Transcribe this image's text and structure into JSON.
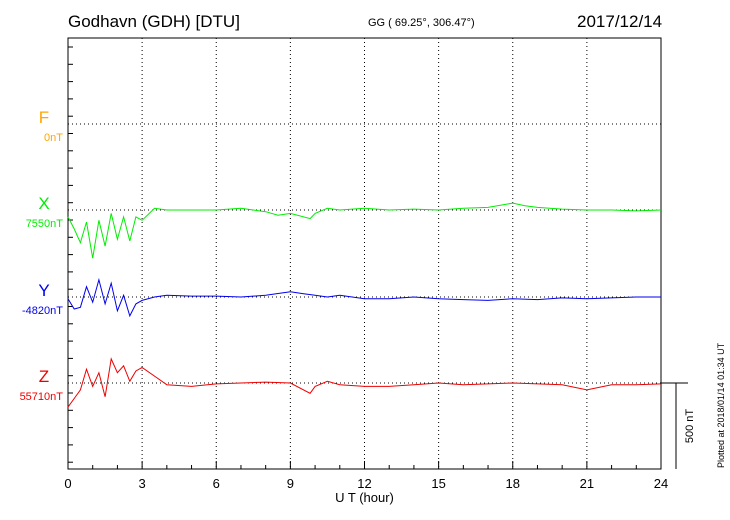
{
  "header": {
    "station": "Godhavn (GDH)  [DTU]",
    "coords": "GG ( 69.25°, 306.47°)",
    "date": "2017/12/14"
  },
  "footer": {
    "plotted": "Plotted at 2018/01/14 01:34 UT"
  },
  "chart_data": {
    "type": "line",
    "title": "",
    "xlabel": "U T (hour)",
    "xlim": [
      0,
      24
    ],
    "xticks": [
      0,
      3,
      6,
      9,
      12,
      15,
      18,
      21,
      24
    ],
    "x_tick_labels": [
      "0",
      "3",
      "6",
      "9",
      "12",
      "15",
      "18",
      "21",
      "24"
    ],
    "ylabel": "",
    "grid": "dotted",
    "scale_bar": {
      "label": "500 nT",
      "value_nT": 500
    },
    "series": [
      {
        "name": "F",
        "baseline_label": "0nT",
        "color": "#ffa500",
        "points": []
      },
      {
        "name": "X",
        "baseline_label": "7550nT",
        "color": "#00ee00",
        "points": [
          [
            0,
            -40
          ],
          [
            0.25,
            -110
          ],
          [
            0.5,
            -190
          ],
          [
            0.75,
            -70
          ],
          [
            1.0,
            -280
          ],
          [
            1.25,
            -60
          ],
          [
            1.5,
            -210
          ],
          [
            1.75,
            -20
          ],
          [
            2.0,
            -170
          ],
          [
            2.25,
            -40
          ],
          [
            2.5,
            -180
          ],
          [
            2.75,
            -40
          ],
          [
            3.0,
            -60
          ],
          [
            3.5,
            10
          ],
          [
            4,
            0
          ],
          [
            5,
            0
          ],
          [
            6,
            0
          ],
          [
            7,
            10
          ],
          [
            8,
            -10
          ],
          [
            8.5,
            -30
          ],
          [
            9,
            -20
          ],
          [
            9.8,
            -50
          ],
          [
            10,
            -20
          ],
          [
            10.5,
            10
          ],
          [
            11,
            0
          ],
          [
            12,
            10
          ],
          [
            13,
            0
          ],
          [
            14,
            5
          ],
          [
            15,
            0
          ],
          [
            16,
            10
          ],
          [
            17,
            15
          ],
          [
            18,
            40
          ],
          [
            18.5,
            25
          ],
          [
            19,
            15
          ],
          [
            20,
            5
          ],
          [
            21,
            0
          ],
          [
            22,
            0
          ],
          [
            23,
            -5
          ],
          [
            24,
            0
          ]
        ]
      },
      {
        "name": "Y",
        "baseline_label": "-4820nT",
        "color": "#0000ee",
        "points": [
          [
            0,
            -10
          ],
          [
            0.25,
            -70
          ],
          [
            0.5,
            -60
          ],
          [
            0.75,
            60
          ],
          [
            1.0,
            -30
          ],
          [
            1.25,
            100
          ],
          [
            1.5,
            -40
          ],
          [
            1.75,
            80
          ],
          [
            2.0,
            -80
          ],
          [
            2.25,
            10
          ],
          [
            2.5,
            -110
          ],
          [
            2.75,
            -40
          ],
          [
            3.0,
            -20
          ],
          [
            3.5,
            0
          ],
          [
            4,
            10
          ],
          [
            5,
            5
          ],
          [
            6,
            5
          ],
          [
            7,
            0
          ],
          [
            8,
            10
          ],
          [
            9,
            30
          ],
          [
            9.5,
            20
          ],
          [
            10,
            10
          ],
          [
            10.5,
            0
          ],
          [
            11,
            10
          ],
          [
            12,
            -10
          ],
          [
            13,
            -10
          ],
          [
            14,
            0
          ],
          [
            15,
            -10
          ],
          [
            16,
            -15
          ],
          [
            17,
            -20
          ],
          [
            18,
            -10
          ],
          [
            19,
            -15
          ],
          [
            20,
            -5
          ],
          [
            21,
            -10
          ],
          [
            22,
            -5
          ],
          [
            23,
            0
          ],
          [
            24,
            0
          ]
        ]
      },
      {
        "name": "Z",
        "baseline_label": "55710nT",
        "color": "#ee0000",
        "points": [
          [
            0,
            -140
          ],
          [
            0.25,
            -90
          ],
          [
            0.5,
            -40
          ],
          [
            0.75,
            80
          ],
          [
            1.0,
            -20
          ],
          [
            1.25,
            60
          ],
          [
            1.5,
            -80
          ],
          [
            1.75,
            140
          ],
          [
            2.0,
            60
          ],
          [
            2.25,
            100
          ],
          [
            2.5,
            10
          ],
          [
            2.75,
            70
          ],
          [
            3.0,
            90
          ],
          [
            3.5,
            40
          ],
          [
            4,
            -10
          ],
          [
            5,
            -20
          ],
          [
            6,
            -5
          ],
          [
            7,
            0
          ],
          [
            8,
            5
          ],
          [
            9,
            0
          ],
          [
            9.8,
            -60
          ],
          [
            10,
            -20
          ],
          [
            10.5,
            10
          ],
          [
            11,
            -10
          ],
          [
            12,
            -20
          ],
          [
            13,
            -20
          ],
          [
            14,
            -10
          ],
          [
            15,
            0
          ],
          [
            16,
            -10
          ],
          [
            17,
            -5
          ],
          [
            18,
            0
          ],
          [
            19,
            -5
          ],
          [
            20,
            -10
          ],
          [
            21,
            -40
          ],
          [
            22,
            -10
          ],
          [
            23,
            -10
          ],
          [
            24,
            -5
          ]
        ]
      }
    ]
  }
}
